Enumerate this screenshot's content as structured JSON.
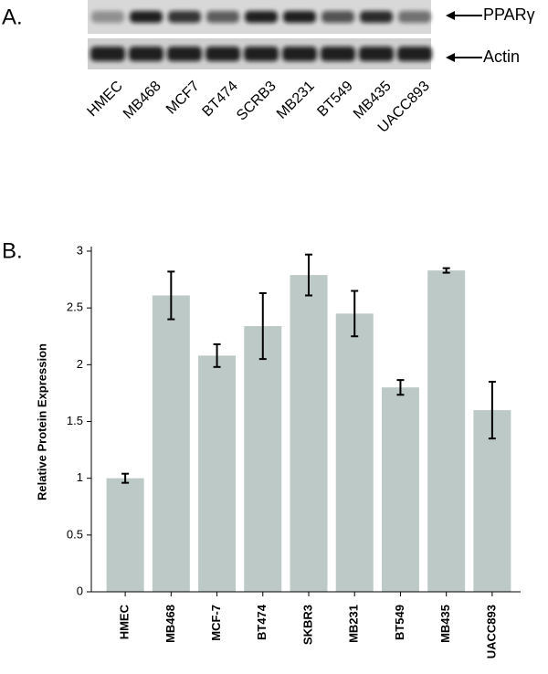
{
  "panel_a": {
    "label": "A.",
    "bands": [
      "PPARγ",
      "Actin"
    ],
    "lanes": [
      "HMEC",
      "MB468",
      "MCF7",
      "BT474",
      "SCRB3",
      "MB231",
      "BT549",
      "MB435",
      "UACC893"
    ]
  },
  "panel_b": {
    "label": "B."
  },
  "chart_data": {
    "type": "bar",
    "ylabel": "Relative Protein Expression",
    "categories": [
      "HMEC",
      "MB468",
      "MCF-7",
      "BT474",
      "SKBR3",
      "MB231",
      "BT549",
      "MB435",
      "UACC893"
    ],
    "values": [
      1.0,
      2.61,
      2.08,
      2.34,
      2.79,
      2.45,
      1.8,
      2.83,
      1.6
    ],
    "errors": [
      0.04,
      0.21,
      0.1,
      0.29,
      0.18,
      0.2,
      0.065,
      0.02,
      0.25
    ],
    "color": "#bcc9c6",
    "error_color": "#000000",
    "ylim": [
      0,
      3
    ],
    "yticks": [
      0,
      0.5,
      1,
      1.5,
      2,
      2.5,
      3
    ],
    "grid": false
  }
}
